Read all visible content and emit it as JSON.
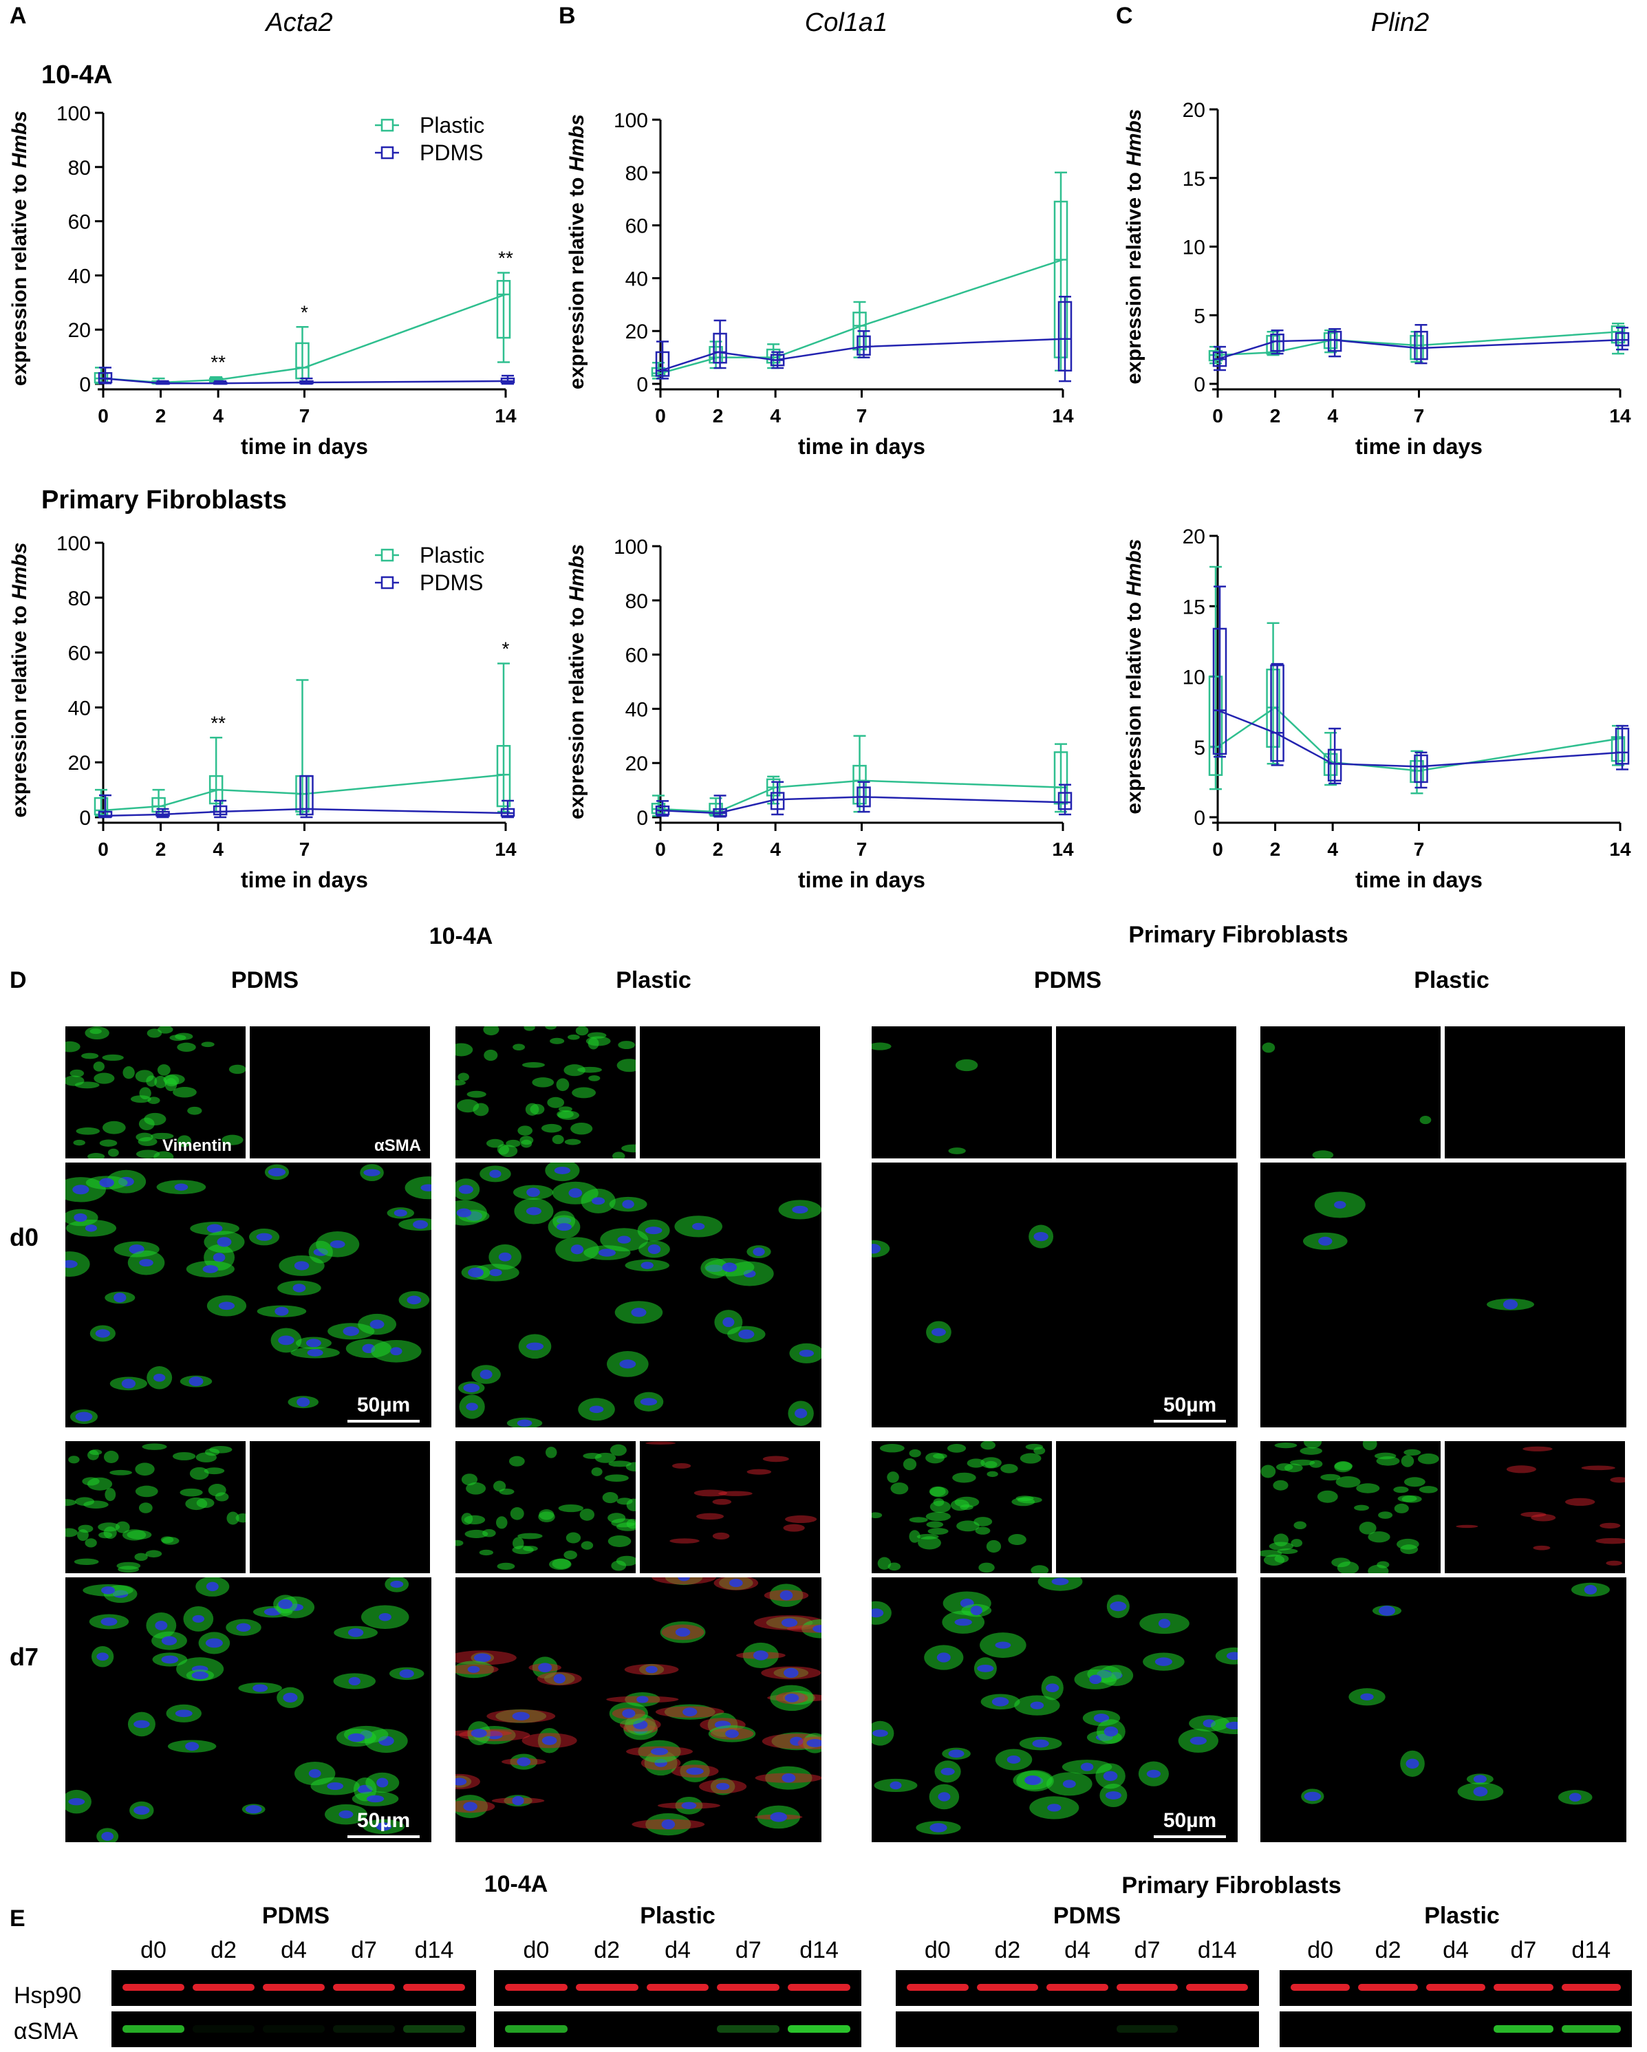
{
  "panels": {
    "a": "A",
    "b": "B",
    "c": "C",
    "d": "D",
    "e": "E"
  },
  "gene_titles": [
    "Acta2",
    "Col1a1",
    "Plin2"
  ],
  "row_labels": [
    "10-4A",
    "Primary Fibroblasts"
  ],
  "ylabel_prefix": "expression relative to ",
  "ylabel_ref": "Hmbs",
  "xlabel": "time in days",
  "legend": [
    "Plastic",
    "PDMS"
  ],
  "colors": {
    "plastic": "#2fbf8f",
    "pdms": "#2323b0"
  },
  "chart_data": [
    {
      "id": "A1",
      "type": "line",
      "gene": "Acta2",
      "cell": "10-4A",
      "x": [
        0,
        2,
        4,
        7,
        14
      ],
      "ylim": [
        0,
        100
      ],
      "yticks": [
        0,
        20,
        40,
        60,
        80,
        100
      ],
      "legend": true,
      "series": [
        {
          "name": "Plastic",
          "values": [
            2,
            0.5,
            1.5,
            6,
            33
          ],
          "box_low": [
            0.5,
            0.2,
            0.8,
            2,
            17
          ],
          "box_high": [
            4,
            1,
            2,
            15,
            38
          ],
          "whisk_low": [
            0.2,
            0.1,
            0.5,
            0.5,
            8
          ],
          "whisk_high": [
            6,
            2,
            2.5,
            21,
            41
          ]
        },
        {
          "name": "PDMS",
          "values": [
            2,
            0.2,
            0.2,
            0.5,
            1
          ],
          "box_low": [
            0.5,
            0.1,
            0.1,
            0.2,
            0.5
          ],
          "box_high": [
            4,
            0.5,
            0.5,
            1,
            2
          ],
          "whisk_low": [
            0.2,
            0,
            0,
            0,
            0
          ],
          "whisk_high": [
            6,
            1,
            1,
            2,
            3
          ]
        }
      ],
      "annotations": [
        {
          "x": 4,
          "y": 2.5,
          "text": "**"
        },
        {
          "x": 7,
          "y": 21,
          "text": "*"
        },
        {
          "x": 14,
          "y": 41,
          "text": "**"
        }
      ]
    },
    {
      "id": "B1",
      "type": "line",
      "gene": "Col1a1",
      "cell": "10-4A",
      "x": [
        0,
        2,
        4,
        7,
        14
      ],
      "ylim": [
        0,
        100
      ],
      "yticks": [
        0,
        20,
        40,
        60,
        80,
        100
      ],
      "legend": false,
      "series": [
        {
          "name": "Plastic",
          "values": [
            4,
            10,
            10,
            22,
            47
          ],
          "box_low": [
            3,
            8,
            8,
            13,
            10
          ],
          "box_high": [
            6,
            14,
            13,
            27,
            69
          ],
          "whisk_low": [
            2,
            6,
            6,
            10,
            5
          ],
          "whisk_high": [
            8,
            16,
            15,
            31,
            80
          ]
        },
        {
          "name": "PDMS",
          "values": [
            5,
            12,
            9,
            14,
            17
          ],
          "box_low": [
            3,
            8,
            7,
            11,
            5
          ],
          "box_high": [
            12,
            19,
            11,
            18,
            31
          ],
          "whisk_low": [
            2,
            6,
            6,
            10,
            1
          ],
          "whisk_high": [
            16,
            24,
            12,
            20,
            33
          ]
        }
      ],
      "annotations": []
    },
    {
      "id": "C1",
      "type": "line",
      "gene": "Plin2",
      "cell": "10-4A",
      "x": [
        0,
        2,
        4,
        7,
        14
      ],
      "ylim": [
        0,
        20
      ],
      "yticks": [
        0,
        5,
        10,
        15,
        20
      ],
      "legend": false,
      "series": [
        {
          "name": "Plastic",
          "values": [
            2.1,
            2.3,
            3.2,
            2.8,
            3.8
          ],
          "box_low": [
            1.7,
            2.2,
            2.6,
            1.8,
            3.0
          ],
          "box_high": [
            2.4,
            3.5,
            3.7,
            3.5,
            4.2
          ],
          "whisk_low": [
            1.5,
            2.1,
            2.3,
            1.6,
            2.2
          ],
          "whisk_high": [
            2.7,
            3.8,
            3.9,
            3.8,
            4.4
          ]
        },
        {
          "name": "PDMS",
          "values": [
            1.8,
            3.1,
            3.2,
            2.6,
            3.2
          ],
          "box_low": [
            1.3,
            2.4,
            2.4,
            1.8,
            2.8
          ],
          "box_high": [
            2.3,
            3.6,
            3.8,
            3.8,
            3.7
          ],
          "whisk_low": [
            1.0,
            2.2,
            2.0,
            1.5,
            2.5
          ],
          "whisk_high": [
            2.7,
            3.9,
            4.0,
            4.3,
            4.1
          ]
        }
      ],
      "annotations": []
    },
    {
      "id": "A2",
      "type": "line",
      "gene": "Acta2",
      "cell": "Primary Fibroblasts",
      "x": [
        0,
        2,
        4,
        7,
        14
      ],
      "ylim": [
        0,
        100
      ],
      "yticks": [
        0,
        20,
        40,
        60,
        80,
        100
      ],
      "legend": true,
      "series": [
        {
          "name": "Plastic",
          "values": [
            2.5,
            4,
            10,
            8.5,
            15.5
          ],
          "box_low": [
            1,
            2,
            5,
            2,
            4
          ],
          "box_high": [
            7,
            7,
            15,
            15,
            26
          ],
          "whisk_low": [
            0.5,
            1,
            2,
            1,
            2
          ],
          "whisk_high": [
            10,
            10,
            29,
            50,
            56
          ]
        },
        {
          "name": "PDMS",
          "values": [
            0.5,
            1,
            2,
            3,
            1.5
          ],
          "box_low": [
            0.2,
            0.5,
            1,
            1,
            0.5
          ],
          "box_high": [
            2,
            2,
            4,
            15,
            3
          ],
          "whisk_low": [
            0,
            0,
            0,
            0,
            0
          ],
          "whisk_high": [
            8,
            3,
            6,
            15,
            6
          ]
        }
      ],
      "annotations": [
        {
          "x": 4,
          "y": 29,
          "text": "**"
        },
        {
          "x": 14,
          "y": 56,
          "text": "*"
        }
      ]
    },
    {
      "id": "B2",
      "type": "line",
      "gene": "Col1a1",
      "cell": "Primary Fibroblasts",
      "x": [
        0,
        2,
        4,
        7,
        14
      ],
      "ylim": [
        0,
        100
      ],
      "yticks": [
        0,
        20,
        40,
        60,
        80,
        100
      ],
      "legend": false,
      "series": [
        {
          "name": "Plastic",
          "values": [
            3,
            2,
            11,
            13.5,
            11
          ],
          "box_low": [
            1.5,
            1,
            8,
            5,
            5
          ],
          "box_high": [
            5,
            5,
            14,
            19,
            24
          ],
          "whisk_low": [
            0.5,
            0.5,
            5,
            2,
            2
          ],
          "whisk_high": [
            8,
            7,
            15,
            30,
            27
          ]
        },
        {
          "name": "PDMS",
          "values": [
            2.5,
            1.5,
            6.5,
            7.5,
            5.5
          ],
          "box_low": [
            1,
            0.5,
            3,
            4,
            3
          ],
          "box_high": [
            4,
            3,
            9,
            11,
            9
          ],
          "whisk_low": [
            0.5,
            0.2,
            1,
            2,
            1
          ],
          "whisk_high": [
            6,
            8,
            13,
            13,
            12
          ]
        }
      ],
      "annotations": []
    },
    {
      "id": "C2",
      "type": "line",
      "gene": "Plin2",
      "cell": "Primary Fibroblasts",
      "x": [
        0,
        2,
        4,
        7,
        14
      ],
      "ylim": [
        0,
        20
      ],
      "yticks": [
        0,
        5,
        10,
        15,
        20
      ],
      "legend": false,
      "series": [
        {
          "name": "Plastic",
          "values": [
            5,
            7.8,
            3.9,
            3.3,
            5.6
          ],
          "box_low": [
            3,
            5,
            3,
            2.5,
            4
          ],
          "box_high": [
            10,
            10.5,
            4.5,
            4,
            5.7
          ],
          "whisk_low": [
            2,
            3.8,
            2.3,
            1.7,
            3.7
          ],
          "whisk_high": [
            17.8,
            13.8,
            6,
            4.7,
            6.5
          ]
        },
        {
          "name": "PDMS",
          "values": [
            7.6,
            6,
            3.8,
            3.6,
            4.6
          ],
          "box_low": [
            4.5,
            4,
            2.6,
            2.5,
            3.8
          ],
          "box_high": [
            13.4,
            10.8,
            4.8,
            4.4,
            6.3
          ],
          "whisk_low": [
            4.3,
            3.7,
            2.4,
            2.1,
            3.4
          ],
          "whisk_high": [
            16.4,
            10.9,
            6.3,
            4.6,
            6.5
          ]
        }
      ],
      "annotations": []
    }
  ],
  "d_section": {
    "group_titles": [
      "10-4A",
      "Primary Fibroblasts"
    ],
    "substrates": [
      "PDMS",
      "Plastic",
      "PDMS",
      "Plastic"
    ],
    "day_labels": [
      "d0",
      "d7"
    ],
    "channel_labels": [
      "Vimentin",
      "αSMA"
    ],
    "scale_label": "50µm"
  },
  "e_section": {
    "group_titles": [
      "10-4A",
      "Primary Fibroblasts"
    ],
    "substrates": [
      "PDMS",
      "Plastic",
      "PDMS",
      "Plastic"
    ],
    "lanes": [
      "d0",
      "d2",
      "d4",
      "d7",
      "d14"
    ],
    "rows": [
      "Hsp90",
      "αSMA"
    ],
    "asma_band_intensity": [
      [
        0.8,
        0.05,
        0.05,
        0.1,
        0.3
      ],
      [
        0.75,
        0,
        0,
        0.35,
        0.9
      ],
      [
        0,
        0,
        0,
        0.15,
        0
      ],
      [
        0,
        0,
        0,
        0.85,
        0.8
      ]
    ]
  }
}
